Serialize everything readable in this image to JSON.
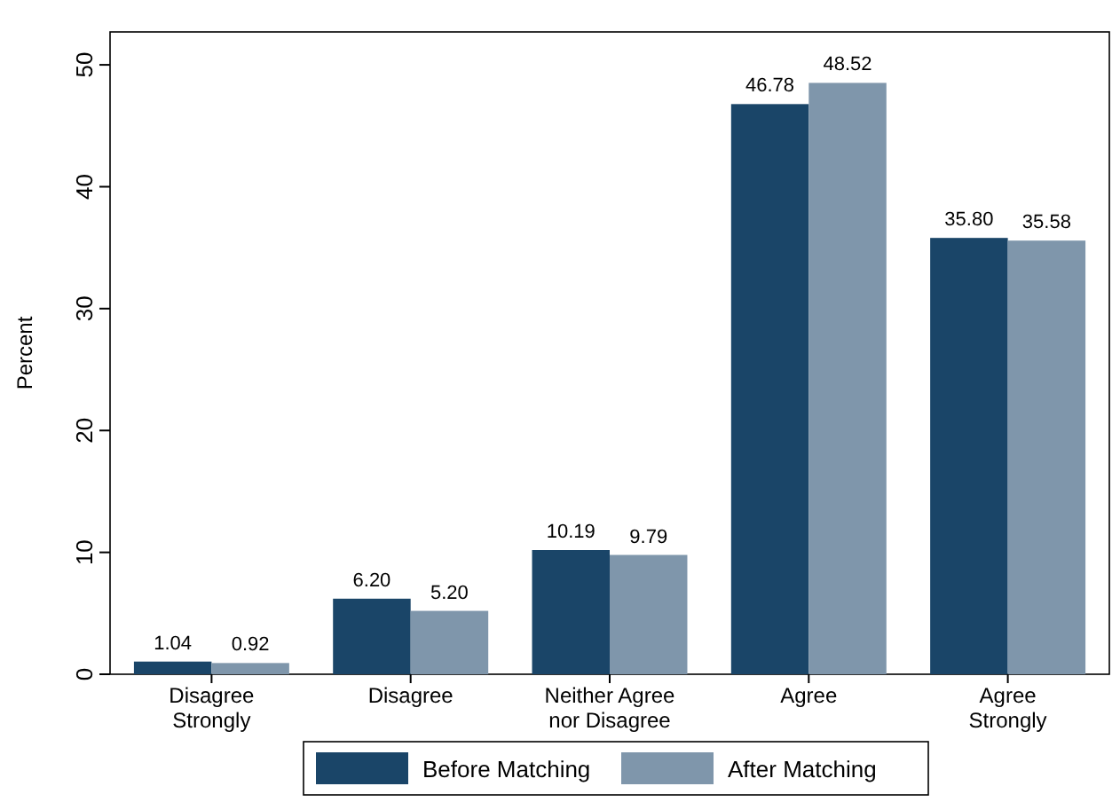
{
  "chart_data": {
    "type": "bar",
    "ylabel": "Percent",
    "categories": [
      "Disagree\nStrongly",
      "Disagree",
      "Neither Agree\nnor Disagree",
      "Agree",
      "Agree\nStrongly"
    ],
    "series": [
      {
        "name": "Before Matching",
        "color": "#1a4568",
        "values": [
          1.04,
          6.2,
          10.19,
          46.78,
          35.8
        ],
        "value_labels": [
          "1.04",
          "6.20",
          "10.19",
          "46.78",
          "35.80"
        ]
      },
      {
        "name": "After Matching",
        "color": "#7f96ab",
        "values": [
          0.92,
          5.2,
          9.79,
          48.52,
          35.58
        ],
        "value_labels": [
          "0.92",
          "5.20",
          "9.79",
          "48.52",
          "35.58"
        ]
      }
    ],
    "ylim": [
      0,
      52.7
    ],
    "yticks": [
      0,
      10,
      20,
      30,
      40,
      50
    ],
    "grid": false,
    "legend": "bottom"
  }
}
